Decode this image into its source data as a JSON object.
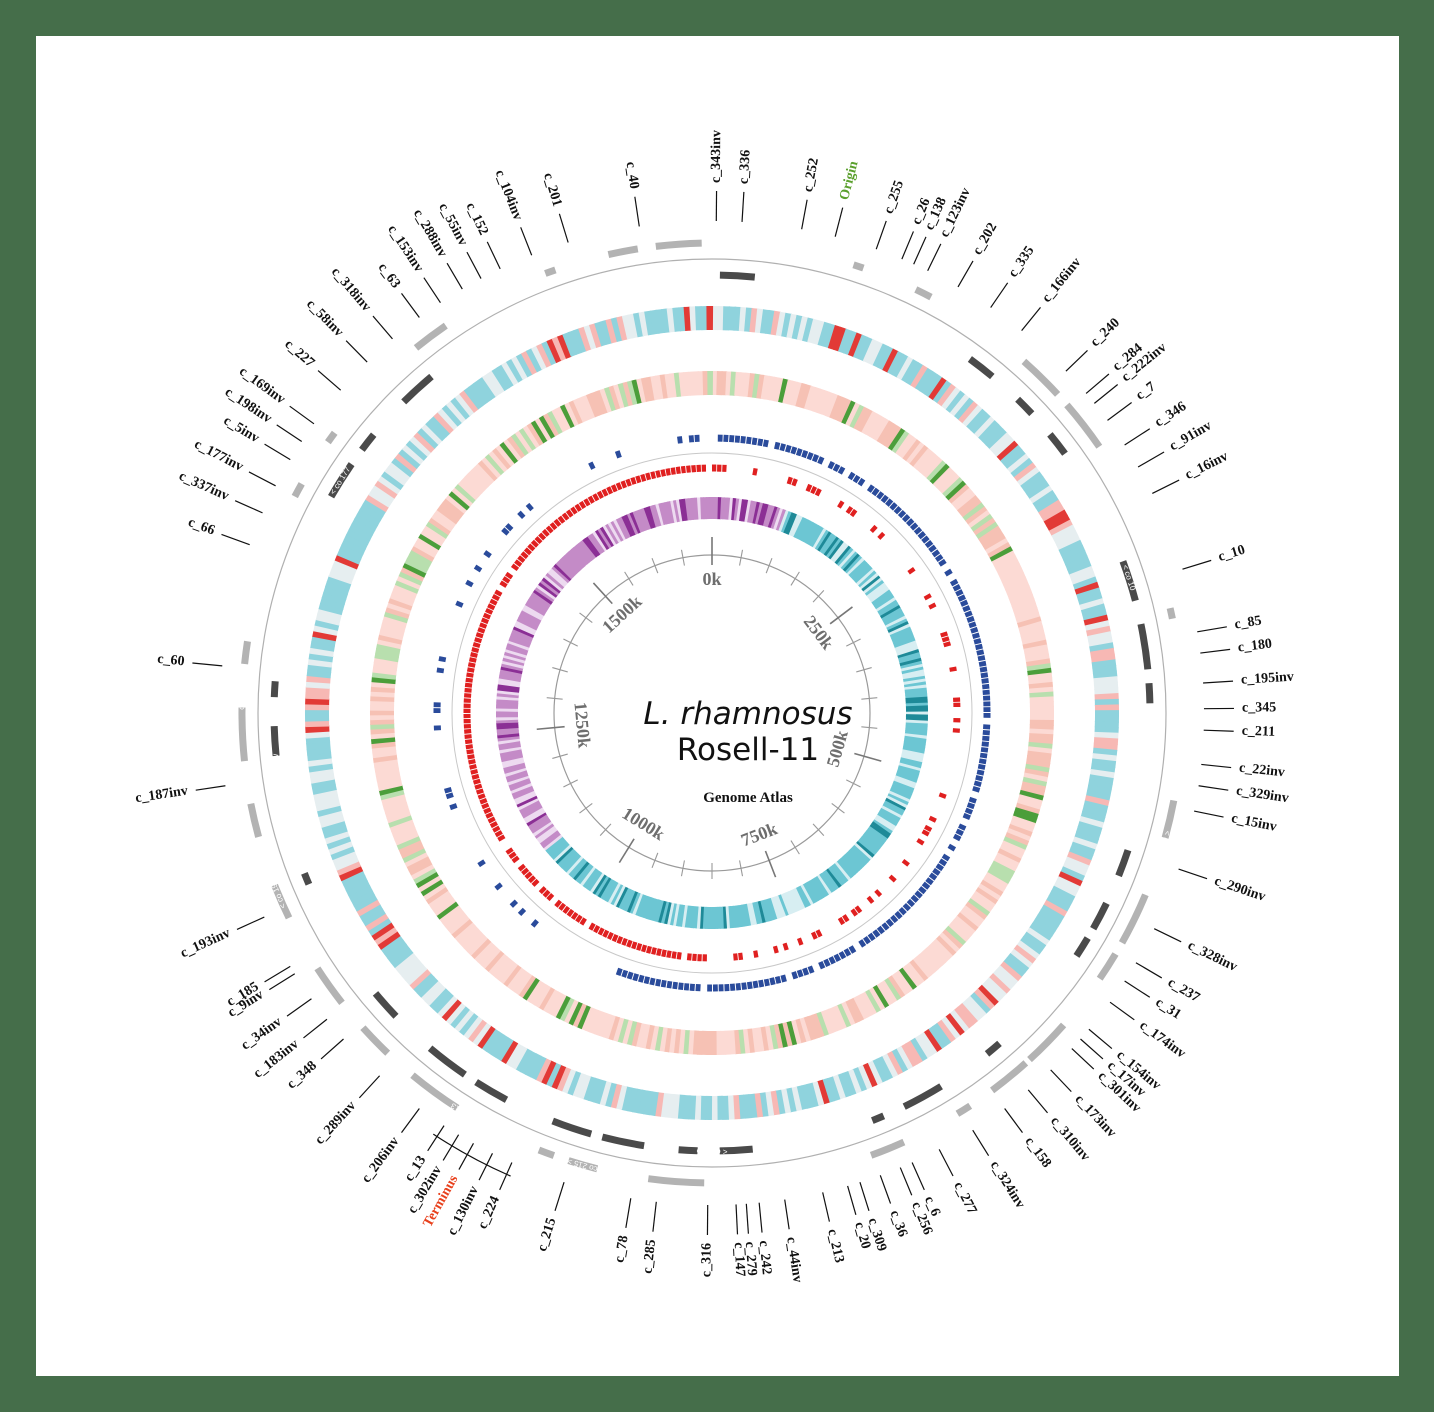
{
  "title": {
    "species": "L. rhamnosus",
    "strain": "Rosell-11",
    "subtitle": "Genome Atlas"
  },
  "markers": {
    "origin": {
      "label": "Origin",
      "color": "#5aa02c"
    },
    "terminus": {
      "label": "Terminus",
      "color": "#e8401c"
    }
  },
  "scale": {
    "ticks": [
      "0k",
      "250k",
      "500k",
      "750k",
      "1000k",
      "1250k",
      "1500k"
    ],
    "genome_length_k": 1700
  },
  "colors": {
    "background": "#456e4a",
    "contig_light": "#b3b3b3",
    "contig_dark": "#4a4a4a",
    "ring_teal": "#4bb8c9",
    "ring_red": "#e02020",
    "ring_green": "#3b9a2e",
    "ring_salmon": "#fbd0c8",
    "ring_blue": "#2a4b9b",
    "ring_purple": "#9b3fa3",
    "scale_line": "#9a9a9a",
    "tick_label": "#6e6e6e"
  },
  "contig_labels": [
    {
      "text": "c_343inv",
      "angle": 0.5
    },
    {
      "text": "c_336",
      "angle": 3.5
    },
    {
      "text": "c_252",
      "angle": 10.5
    },
    {
      "text": "Origin",
      "angle": 14.5,
      "type": "origin"
    },
    {
      "text": "c_255",
      "angle": 19.5
    },
    {
      "text": "c_26",
      "angle": 22.7
    },
    {
      "text": "c_138",
      "angle": 24.2
    },
    {
      "text": "c_123inv",
      "angle": 26.0
    },
    {
      "text": "c_202",
      "angle": 30.0
    },
    {
      "text": "c_335",
      "angle": 34.5
    },
    {
      "text": "c_166inv",
      "angle": 39.0
    },
    {
      "text": "c_240",
      "angle": 46.0
    },
    {
      "text": "c_284",
      "angle": 49.5
    },
    {
      "text": "c_222inv",
      "angle": 51.0
    },
    {
      "text": "c_7",
      "angle": 53.5
    },
    {
      "text": "c_346",
      "angle": 57.0
    },
    {
      "text": "c_91inv",
      "angle": 60.0
    },
    {
      "text": "c_16inv",
      "angle": 63.5
    },
    {
      "text": "c_10",
      "angle": 73.0
    },
    {
      "text": "c_85",
      "angle": 80.5
    },
    {
      "text": "c_180",
      "angle": 83.0
    },
    {
      "text": "c_195inv",
      "angle": 86.5
    },
    {
      "text": "c_345",
      "angle": 89.5
    },
    {
      "text": "c_211",
      "angle": 92.0
    },
    {
      "text": "c_22inv",
      "angle": 96.0
    },
    {
      "text": "c_329inv",
      "angle": 98.5
    },
    {
      "text": "c_15inv",
      "angle": 101.5
    },
    {
      "text": "c_290inv",
      "angle": 108.5
    },
    {
      "text": "c_328inv",
      "angle": 116.0
    },
    {
      "text": "c_237",
      "angle": 120.5
    },
    {
      "text": "c_31",
      "angle": 123.0
    },
    {
      "text": "c_174inv",
      "angle": 126.0
    },
    {
      "text": "c_154inv",
      "angle": 130.0
    },
    {
      "text": "c_17inv",
      "angle": 131.5
    },
    {
      "text": "c_301inv",
      "angle": 133.0
    },
    {
      "text": "c_173inv",
      "angle": 136.5
    },
    {
      "text": "c_310inv",
      "angle": 140.0
    },
    {
      "text": "c_158",
      "angle": 143.5
    },
    {
      "text": "c_324inv",
      "angle": 148.0
    },
    {
      "text": "c_277",
      "angle": 152.5
    },
    {
      "text": "c_6",
      "angle": 156.0
    },
    {
      "text": "c_256",
      "angle": 157.5
    },
    {
      "text": "c_36",
      "angle": 160.0
    },
    {
      "text": "c_309",
      "angle": 162.5
    },
    {
      "text": "c_20",
      "angle": 164.0
    },
    {
      "text": "c_213",
      "angle": 167.0
    },
    {
      "text": "c_44inv",
      "angle": 171.5
    },
    {
      "text": "c_242",
      "angle": 174.5
    },
    {
      "text": "c_279",
      "angle": 176.0
    },
    {
      "text": "c_147",
      "angle": 177.2
    },
    {
      "text": "c_316",
      "angle": 180.5
    },
    {
      "text": "c_285",
      "angle": 186.5
    },
    {
      "text": "c_78",
      "angle": 189.5
    },
    {
      "text": "c_215",
      "angle": 197.5
    },
    {
      "text": "c_224",
      "angle": 204.0
    },
    {
      "text": "c_130inv",
      "angle": 206.5
    },
    {
      "text": "Terminus",
      "angle": 209.0,
      "type": "terminus"
    },
    {
      "text": "c_302inv",
      "angle": 211.0
    },
    {
      "text": "c_13",
      "angle": 213.0
    },
    {
      "text": "c_206inv",
      "angle": 216.5
    },
    {
      "text": "c_289inv",
      "angle": 222.5
    },
    {
      "text": "c_348",
      "angle": 228.5
    },
    {
      "text": "c_183inv",
      "angle": 231.5
    },
    {
      "text": "c_34inv",
      "angle": 234.5
    },
    {
      "text": "c_9inv",
      "angle": 238.0
    },
    {
      "text": "c_185",
      "angle": 239.0
    },
    {
      "text": "c_193inv",
      "angle": 245.5
    },
    {
      "text": "c_187inv",
      "angle": 261.5
    },
    {
      "text": "c_60",
      "angle": 275.5
    },
    {
      "text": "c_66",
      "angle": 290.0
    },
    {
      "text": "c_337inv",
      "angle": 294.0
    },
    {
      "text": "c_177inv",
      "angle": 297.5
    },
    {
      "text": "c_5inv",
      "angle": 301.0
    },
    {
      "text": "c_198inv",
      "angle": 303.5
    },
    {
      "text": "c_169inv",
      "angle": 306.0
    },
    {
      "text": "c_227",
      "angle": 311.0
    },
    {
      "text": "c_58inv",
      "angle": 315.5
    },
    {
      "text": "c_318inv",
      "angle": 319.5
    },
    {
      "text": "c_63",
      "angle": 323.5
    },
    {
      "text": "c_153inv",
      "angle": 326.5
    },
    {
      "text": "c_288inv",
      "angle": 329.5
    },
    {
      "text": "c_55inv",
      "angle": 332.0
    },
    {
      "text": "c_152",
      "angle": 334.5
    },
    {
      "text": "c_104inv",
      "angle": 338.5
    },
    {
      "text": "c_201",
      "angle": 343.0
    },
    {
      "text": "c_40",
      "angle": 351.5
    }
  ],
  "contig_track_labels": [
    {
      "text": "< co 40",
      "angle": 352.0,
      "ring": "dark"
    },
    {
      "text": "co 343 >",
      "angle": 7.0,
      "ring": "light"
    },
    {
      "text": "< co 335",
      "angle": 26.0,
      "ring": "dark"
    },
    {
      "text": "< co 10",
      "angle": 72.0,
      "ring": "dark"
    },
    {
      "text": "< co 290inv",
      "angle": 107.0,
      "ring": "light"
    },
    {
      "text": "< co 316",
      "angle": 180.0,
      "ring": "dark"
    },
    {
      "text": "co 215 >",
      "angle": 196.0,
      "ring": "light"
    },
    {
      "text": "< co 13",
      "angle": 212.0,
      "ring": "light"
    },
    {
      "text": "< co 193inv",
      "angle": 248.0,
      "ring": "light"
    },
    {
      "text": "< co 187inv",
      "angle": 262.0,
      "ring": "dark"
    },
    {
      "text": "co 60 >",
      "angle": 272.0,
      "ring": "light"
    },
    {
      "text": "< co 177",
      "angle": 302.0,
      "ring": "dark"
    }
  ]
}
